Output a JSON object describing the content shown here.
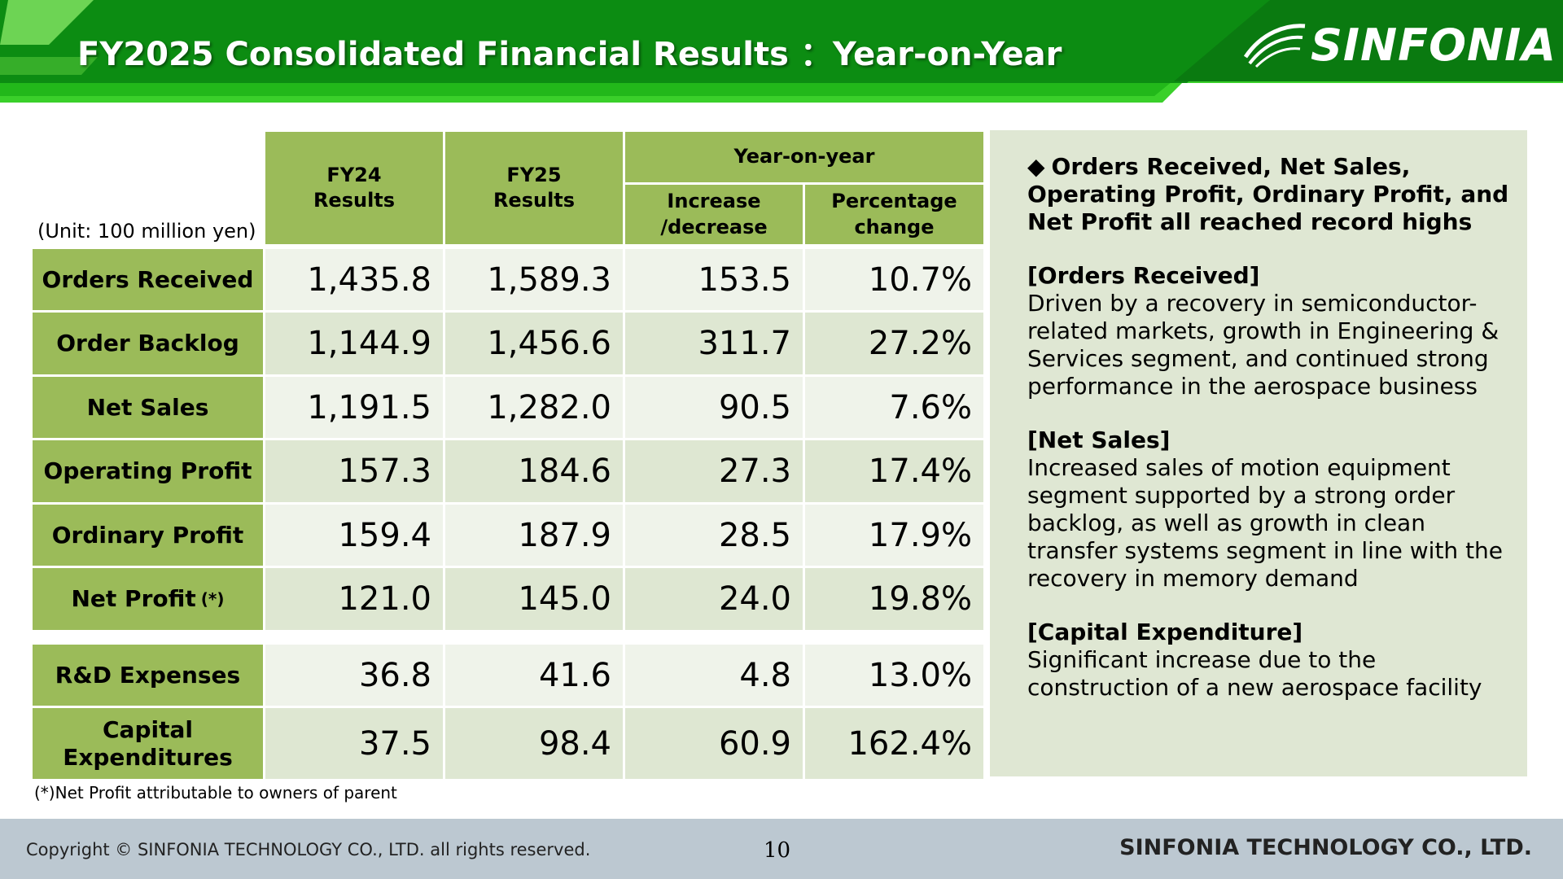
{
  "header": {
    "title": "FY2025 Consolidated Financial Results ：Year-on-Year",
    "logo_text": "SINFONIA",
    "colors": {
      "dark_green": "#0a8a10",
      "bright_green": "#33cc22",
      "light_green": "#7fe060"
    }
  },
  "table": {
    "unit_note": "(Unit: 100 million yen)",
    "headers": {
      "fy24": "FY24\nResults",
      "fy25": "FY25\nResults",
      "yoy": "Year-on-year",
      "increase": "Increase\n/decrease",
      "percentage": "Percentage\nchange"
    },
    "rows": [
      {
        "label": "Orders Received",
        "suffix": "",
        "fy24": "1,435.8",
        "fy25": "1,589.3",
        "increase": "153.5",
        "percent": "10.7%"
      },
      {
        "label": "Order Backlog",
        "suffix": "",
        "fy24": "1,144.9",
        "fy25": "1,456.6",
        "increase": "311.7",
        "percent": "27.2%"
      },
      {
        "label": "Net Sales",
        "suffix": "",
        "fy24": "1,191.5",
        "fy25": "1,282.0",
        "increase": "90.5",
        "percent": "7.6%"
      },
      {
        "label": "Operating Profit",
        "suffix": "",
        "fy24": "157.3",
        "fy25": "184.6",
        "increase": "27.3",
        "percent": "17.4%"
      },
      {
        "label": "Ordinary Profit",
        "suffix": "",
        "fy24": "159.4",
        "fy25": "187.9",
        "increase": "28.5",
        "percent": "17.9%"
      },
      {
        "label": "Net Profit",
        "suffix": "(*)",
        "fy24": "121.0",
        "fy25": "145.0",
        "increase": "24.0",
        "percent": "19.8%"
      },
      {
        "label": "R&D Expenses",
        "suffix": "",
        "fy24": "36.8",
        "fy25": "41.6",
        "increase": "4.8",
        "percent": "13.0%"
      },
      {
        "label": "Capital\nExpenditures",
        "suffix": "",
        "fy24": "37.5",
        "fy25": "98.4",
        "increase": "60.9",
        "percent": "162.4%"
      }
    ],
    "footnote": "(*)Net Profit attributable to owners of parent"
  },
  "panel": {
    "bullet": "◆",
    "heading": "Orders Received, Net Sales,\nOperating Profit,  Ordinary Profit, and\nNet Profit all  reached record highs",
    "sections": [
      {
        "title": "[Orders Received]",
        "body": "Driven by a recovery in semiconductor-\nrelated markets, growth in Engineering &\nServices segment, and continued strong\nperformance in the aerospace business"
      },
      {
        "title": "[Net Sales]",
        "body": "Increased sales of motion equipment\nsegment supported by a strong order\nbacklog, as well as growth in clean\ntransfer systems segment in line with the\nrecovery in memory demand"
      },
      {
        "title": "[Capital Expenditure]",
        "body": "Significant increase due to the\nconstruction of a new aerospace facility"
      }
    ]
  },
  "footer": {
    "copyright": "Copyright © SINFONIA TECHNOLOGY CO., LTD. all rights reserved.",
    "page_number": "10",
    "company": "SINFONIA TECHNOLOGY CO., LTD."
  }
}
